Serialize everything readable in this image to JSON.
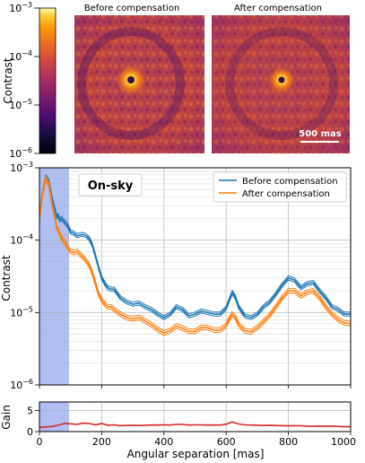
{
  "colorbar": {
    "ylabel": "Contrast",
    "ticks": [
      {
        "label": "10",
        "exp": "−3",
        "log": -3
      },
      {
        "label": "10",
        "exp": "−4",
        "log": -4
      },
      {
        "label": "10",
        "exp": "−5",
        "log": -5
      },
      {
        "label": "10",
        "exp": "−6",
        "log": -6
      }
    ],
    "range_log": [
      -6,
      -3
    ],
    "colormap": "inferno"
  },
  "images": {
    "before_title": "Before compensation",
    "after_title": "After compensation",
    "scalebar_label": "500 mas"
  },
  "chart_data": [
    {
      "type": "line",
      "annotation": "On-sky",
      "ylabel": "Contrast",
      "xlim": [
        0,
        1000
      ],
      "ylim": [
        1e-06,
        0.001
      ],
      "yscale": "log",
      "grid": true,
      "legend_position": "top-right",
      "shaded_region": {
        "x": [
          0,
          95
        ],
        "color": "#6f89e6"
      },
      "yticks": [
        {
          "label": "10",
          "exp": "−3",
          "log": -3
        },
        {
          "label": "10",
          "exp": "−4",
          "log": -4
        },
        {
          "label": "10",
          "exp": "−5",
          "log": -5
        },
        {
          "label": "10",
          "exp": "−6",
          "log": -6
        }
      ],
      "series": [
        {
          "name": "Before compensation",
          "color": "#1f77b4",
          "x": [
            0,
            10,
            20,
            30,
            40,
            50,
            55,
            60,
            65,
            70,
            80,
            90,
            100,
            110,
            120,
            130,
            140,
            150,
            160,
            170,
            180,
            190,
            200,
            210,
            220,
            230,
            240,
            260,
            280,
            300,
            320,
            340,
            360,
            380,
            400,
            420,
            440,
            460,
            480,
            500,
            520,
            540,
            560,
            580,
            600,
            610,
            620,
            630,
            640,
            660,
            680,
            700,
            720,
            740,
            760,
            780,
            800,
            820,
            840,
            860,
            880,
            900,
            920,
            940,
            960,
            980,
            1000
          ],
          "y": [
            0.00022,
            0.00045,
            0.00075,
            0.00065,
            0.00038,
            0.00026,
            0.00021,
            0.00022,
            0.00019,
            0.0002,
            0.00018,
            0.00016,
            0.00013,
            0.000125,
            0.000115,
            0.000118,
            0.00012,
            0.000115,
            0.000105,
            8.5e-05,
            6e-05,
            4.2e-05,
            3e-05,
            2.5e-05,
            2.2e-05,
            2.1e-05,
            2.1e-05,
            1.6e-05,
            1.4e-05,
            1.3e-05,
            1.35e-05,
            1.2e-05,
            1.1e-05,
            9.5e-06,
            8.5e-06,
            9.5e-06,
            1.2e-05,
            1.1e-05,
            9e-06,
            9.5e-06,
            1.05e-05,
            1e-05,
            9.5e-06,
            9.5e-06,
            1.15e-05,
            1.5e-05,
            1.9e-05,
            1.6e-05,
            1.2e-05,
            9e-06,
            8.5e-06,
            9.5e-06,
            1.2e-05,
            1.4e-05,
            1.8e-05,
            2.4e-05,
            3e-05,
            2.8e-05,
            2.2e-05,
            2.5e-05,
            2.6e-05,
            2e-05,
            1.6e-05,
            1.2e-05,
            1.1e-05,
            9.5e-06,
            9.5e-06
          ]
        },
        {
          "name": "After compensation",
          "color": "#ff7f0e",
          "x": [
            0,
            10,
            20,
            30,
            40,
            50,
            55,
            60,
            65,
            70,
            80,
            90,
            100,
            110,
            120,
            130,
            140,
            150,
            160,
            170,
            180,
            190,
            200,
            210,
            220,
            230,
            240,
            260,
            280,
            300,
            320,
            340,
            360,
            380,
            400,
            420,
            440,
            460,
            480,
            500,
            520,
            540,
            560,
            580,
            600,
            610,
            620,
            630,
            640,
            660,
            680,
            700,
            720,
            740,
            760,
            780,
            800,
            820,
            840,
            860,
            880,
            900,
            920,
            940,
            960,
            980,
            1000
          ],
          "y": [
            0.0002,
            0.00043,
            0.00072,
            0.00058,
            0.00032,
            0.0002,
            0.00015,
            0.00014,
            0.00012,
            0.00011,
            9.5e-05,
            8e-05,
            7e-05,
            6.7e-05,
            7e-05,
            6.4e-05,
            5.8e-05,
            5.2e-05,
            4.5e-05,
            3.5e-05,
            2.5e-05,
            1.8e-05,
            1.5e-05,
            1.3e-05,
            1.2e-05,
            1.2e-05,
            1.1e-05,
            9.5e-06,
            8.5e-06,
            8.2e-06,
            8.5e-06,
            7.6e-06,
            6.8e-06,
            5.8e-06,
            5.2e-06,
            5.6e-06,
            6.5e-06,
            6.1e-06,
            5.5e-06,
            5.5e-06,
            6.2e-06,
            6.2e-06,
            5.7e-06,
            5.7e-06,
            6.6e-06,
            8.2e-06,
            9.5e-06,
            8.5e-06,
            6.8e-06,
            5.6e-06,
            5.4e-06,
            6.2e-06,
            7.5e-06,
            9.2e-06,
            1.2e-05,
            1.6e-05,
            2e-05,
            2e-05,
            1.7e-05,
            1.9e-05,
            2e-05,
            1.6e-05,
            1.2e-05,
            9.5e-06,
            8e-06,
            7.2e-06,
            7e-06
          ]
        }
      ]
    },
    {
      "type": "line",
      "ylabel": "Gain",
      "xlabel": "Angular separation [mas]",
      "xlim": [
        0,
        1000
      ],
      "ylim": [
        0,
        7
      ],
      "yticks": [
        0,
        5
      ],
      "xticks": [
        0,
        200,
        400,
        600,
        800,
        1000
      ],
      "shaded_region": {
        "x": [
          0,
          95
        ],
        "color": "#6f89e6"
      },
      "series": [
        {
          "color": "#d62728",
          "x": [
            0,
            20,
            40,
            60,
            80,
            100,
            120,
            140,
            160,
            180,
            200,
            220,
            240,
            260,
            280,
            300,
            320,
            340,
            360,
            380,
            400,
            420,
            440,
            460,
            480,
            500,
            520,
            540,
            560,
            580,
            600,
            620,
            640,
            660,
            680,
            700,
            720,
            740,
            760,
            780,
            800,
            820,
            840,
            860,
            880,
            900,
            920,
            940,
            960,
            980,
            1000
          ],
          "y": [
            1.0,
            1.1,
            1.2,
            1.5,
            1.9,
            1.85,
            1.7,
            2.0,
            1.9,
            1.6,
            1.9,
            1.5,
            1.6,
            1.4,
            1.45,
            1.5,
            1.45,
            1.5,
            1.55,
            1.55,
            1.6,
            1.55,
            1.7,
            1.7,
            1.55,
            1.6,
            1.6,
            1.55,
            1.55,
            1.55,
            1.75,
            2.3,
            1.8,
            1.6,
            1.55,
            1.5,
            1.45,
            1.5,
            1.45,
            1.4,
            1.35,
            1.4,
            1.4,
            1.3,
            1.25,
            1.3,
            1.25,
            1.3,
            1.2,
            1.15,
            1.15
          ]
        }
      ]
    }
  ]
}
